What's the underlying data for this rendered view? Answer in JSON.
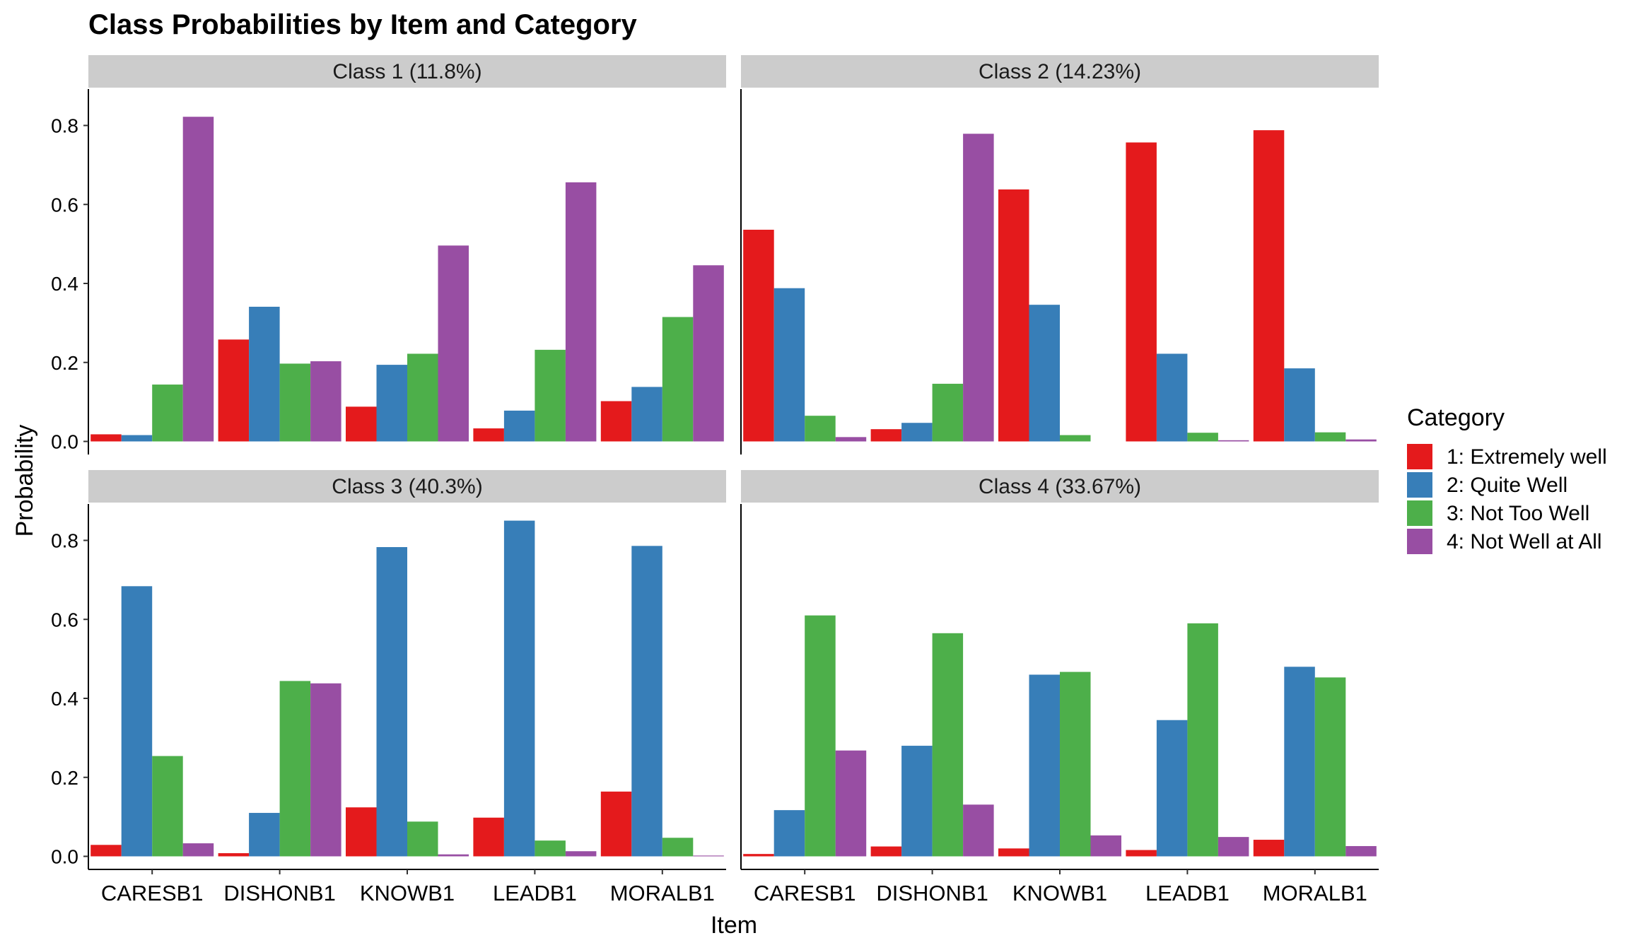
{
  "chart_data": {
    "type": "bar",
    "title": "Class Probabilities by Item and Category",
    "xlabel": "Item",
    "ylabel": "Probability",
    "ylim": [
      0,
      0.87
    ],
    "yticks": [
      "0.0",
      "0.2",
      "0.4",
      "0.6",
      "0.8"
    ],
    "categories": [
      "CARESB1",
      "DISHONB1",
      "KNOWB1",
      "LEADB1",
      "MORALB1"
    ],
    "legend": {
      "title": "Category",
      "position": "right",
      "entries": [
        {
          "label": "1: Extremely well",
          "color": "#E41A1C"
        },
        {
          "label": "2: Quite Well",
          "color": "#377EB8"
        },
        {
          "label": "3: Not Too Well",
          "color": "#4DAF4A"
        },
        {
          "label": "4: Not Well at All",
          "color": "#984EA3"
        }
      ]
    },
    "grid": false,
    "panels": [
      {
        "label": "Class 1 (11.8%)",
        "series": [
          {
            "name": "1: Extremely well",
            "values": [
              0.018,
              0.258,
              0.088,
              0.033,
              0.102
            ]
          },
          {
            "name": "2: Quite Well",
            "values": [
              0.016,
              0.341,
              0.194,
              0.078,
              0.138
            ]
          },
          {
            "name": "3: Not Too Well",
            "values": [
              0.144,
              0.197,
              0.222,
              0.232,
              0.315
            ]
          },
          {
            "name": "4: Not Well at All",
            "values": [
              0.822,
              0.203,
              0.496,
              0.656,
              0.446
            ]
          }
        ]
      },
      {
        "label": "Class 2 (14.23%)",
        "series": [
          {
            "name": "1: Extremely well",
            "values": [
              0.536,
              0.031,
              0.638,
              0.757,
              0.788
            ]
          },
          {
            "name": "2: Quite Well",
            "values": [
              0.388,
              0.047,
              0.346,
              0.222,
              0.185
            ]
          },
          {
            "name": "3: Not Too Well",
            "values": [
              0.065,
              0.146,
              0.016,
              0.022,
              0.023
            ]
          },
          {
            "name": "4: Not Well at All",
            "values": [
              0.011,
              0.779,
              0.0,
              0.003,
              0.005
            ]
          }
        ]
      },
      {
        "label": "Class 3 (40.3%)",
        "series": [
          {
            "name": "1: Extremely well",
            "values": [
              0.029,
              0.008,
              0.124,
              0.098,
              0.164
            ]
          },
          {
            "name": "2: Quite Well",
            "values": [
              0.684,
              0.11,
              0.783,
              0.85,
              0.786
            ]
          },
          {
            "name": "3: Not Too Well",
            "values": [
              0.254,
              0.444,
              0.088,
              0.04,
              0.047
            ]
          },
          {
            "name": "4: Not Well at All",
            "values": [
              0.033,
              0.438,
              0.005,
              0.013,
              0.002
            ]
          }
        ]
      },
      {
        "label": "Class 4 (33.67%)",
        "series": [
          {
            "name": "1: Extremely well",
            "values": [
              0.006,
              0.025,
              0.02,
              0.016,
              0.042
            ]
          },
          {
            "name": "2: Quite Well",
            "values": [
              0.117,
              0.28,
              0.46,
              0.345,
              0.48
            ]
          },
          {
            "name": "3: Not Too Well",
            "values": [
              0.61,
              0.565,
              0.467,
              0.59,
              0.453
            ]
          },
          {
            "name": "4: Not Well at All",
            "values": [
              0.268,
              0.131,
              0.053,
              0.049,
              0.026
            ]
          }
        ]
      }
    ]
  }
}
